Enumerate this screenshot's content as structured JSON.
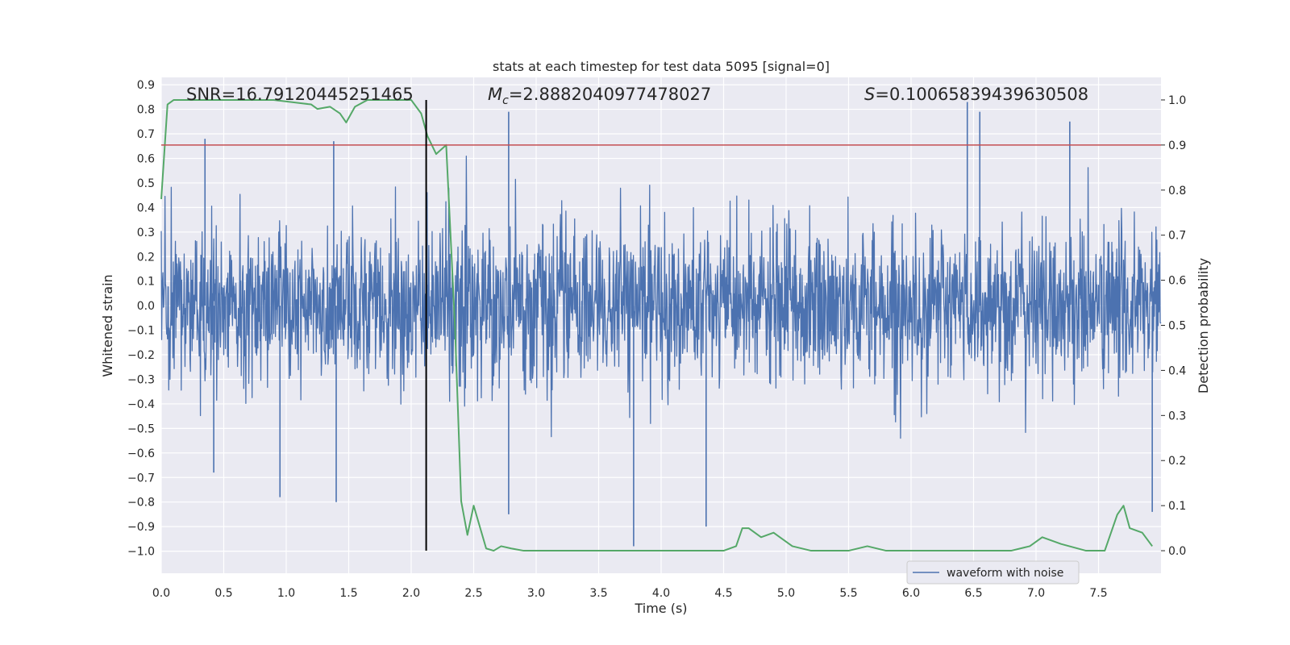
{
  "chart_data": {
    "type": "line",
    "title": "stats at each timestep for test data 5095 [signal=0]",
    "xlabel": "Time (s)",
    "ylabel": "Whitened strain",
    "y2label": "Detection probability",
    "xlim": [
      0.0,
      8.0
    ],
    "ylim": [
      -1.09,
      0.93
    ],
    "y2lim": [
      -0.05,
      1.05
    ],
    "x_ticks": [
      "0.0",
      "0.5",
      "1.0",
      "1.5",
      "2.0",
      "2.5",
      "3.0",
      "3.5",
      "4.0",
      "4.5",
      "5.0",
      "5.5",
      "6.0",
      "6.5",
      "7.0",
      "7.5"
    ],
    "y_ticks": [
      "0.9",
      "0.8",
      "0.7",
      "0.6",
      "0.5",
      "0.4",
      "0.3",
      "0.2",
      "0.1",
      "0.0",
      "−0.1",
      "−0.2",
      "−0.3",
      "−0.4",
      "−0.5",
      "−0.6",
      "−0.7",
      "−0.8",
      "−0.9",
      "−1.0"
    ],
    "y2_ticks": [
      "1.0",
      "0.9",
      "0.8",
      "0.7",
      "0.6",
      "0.5",
      "0.4",
      "0.3",
      "0.2",
      "0.1",
      "0.0"
    ],
    "annotations": {
      "snr": "SNR=16.79120445251465",
      "mc_symbol": "M",
      "mc_sub": "c",
      "mc_value": "=2.8882040977478027",
      "s_symbol": "S",
      "s_value": "=0.10065839439630508"
    },
    "threshold_y2": 0.9,
    "event_time": 2.12,
    "legend": {
      "label": "waveform with noise",
      "location": "lower-right"
    },
    "series": [
      {
        "name": "waveform with noise",
        "axis": "left",
        "envelope": "noise, approx ±0.3 dense, peaks to +0.83 and −1.0",
        "notable_peaks": [
          {
            "t": 0.35,
            "v": 0.68
          },
          {
            "t": 0.42,
            "v": -0.68
          },
          {
            "t": 0.95,
            "v": -0.78
          },
          {
            "t": 1.38,
            "v": 0.67
          },
          {
            "t": 1.4,
            "v": -0.8
          },
          {
            "t": 2.78,
            "v": 0.79
          },
          {
            "t": 2.78,
            "v": -0.85
          },
          {
            "t": 3.78,
            "v": -0.98
          },
          {
            "t": 4.36,
            "v": -0.9
          },
          {
            "t": 6.45,
            "v": 0.83
          },
          {
            "t": 6.55,
            "v": 0.79
          },
          {
            "t": 7.27,
            "v": 0.75
          },
          {
            "t": 7.93,
            "v": -0.84
          }
        ],
        "color": "#4c72b0"
      },
      {
        "name": "detection probability",
        "axis": "right",
        "x": [
          0.0,
          0.05,
          0.1,
          0.3,
          0.6,
          0.9,
          1.2,
          1.25,
          1.35,
          1.43,
          1.48,
          1.55,
          1.65,
          1.8,
          2.0,
          2.08,
          2.13,
          2.2,
          2.28,
          2.35,
          2.4,
          2.45,
          2.5,
          2.6,
          2.66,
          2.72,
          2.8,
          2.9,
          3.2,
          3.6,
          3.8,
          4.0,
          4.3,
          4.5,
          4.6,
          4.65,
          4.7,
          4.8,
          4.9,
          4.95,
          5.05,
          5.2,
          5.5,
          5.65,
          5.8,
          5.95,
          6.2,
          6.5,
          6.8,
          6.95,
          7.05,
          7.2,
          7.4,
          7.55,
          7.65,
          7.7,
          7.75,
          7.85,
          7.93
        ],
        "y": [
          0.78,
          0.99,
          1.0,
          1.0,
          1.0,
          1.0,
          0.99,
          0.98,
          0.985,
          0.97,
          0.95,
          0.985,
          1.0,
          1.0,
          1.0,
          0.97,
          0.92,
          0.88,
          0.9,
          0.5,
          0.11,
          0.035,
          0.1,
          0.005,
          0.0,
          0.01,
          0.005,
          0.0,
          0.0,
          0.0,
          0.0,
          0.0,
          0.0,
          0.0,
          0.01,
          0.05,
          0.05,
          0.03,
          0.04,
          0.03,
          0.01,
          0.0,
          0.0,
          0.01,
          0.0,
          0.0,
          0.0,
          0.0,
          0.0,
          0.01,
          0.03,
          0.015,
          0.0,
          0.0,
          0.08,
          0.1,
          0.05,
          0.04,
          0.01
        ],
        "color": "#55a868"
      }
    ],
    "colors": {
      "axes_bg": "#eaeaf2",
      "grid": "#ffffff",
      "waveform": "#4c72b0",
      "probability": "#55a868",
      "threshold": "#c44e52",
      "event_line": "#000000",
      "text": "#262626"
    }
  }
}
